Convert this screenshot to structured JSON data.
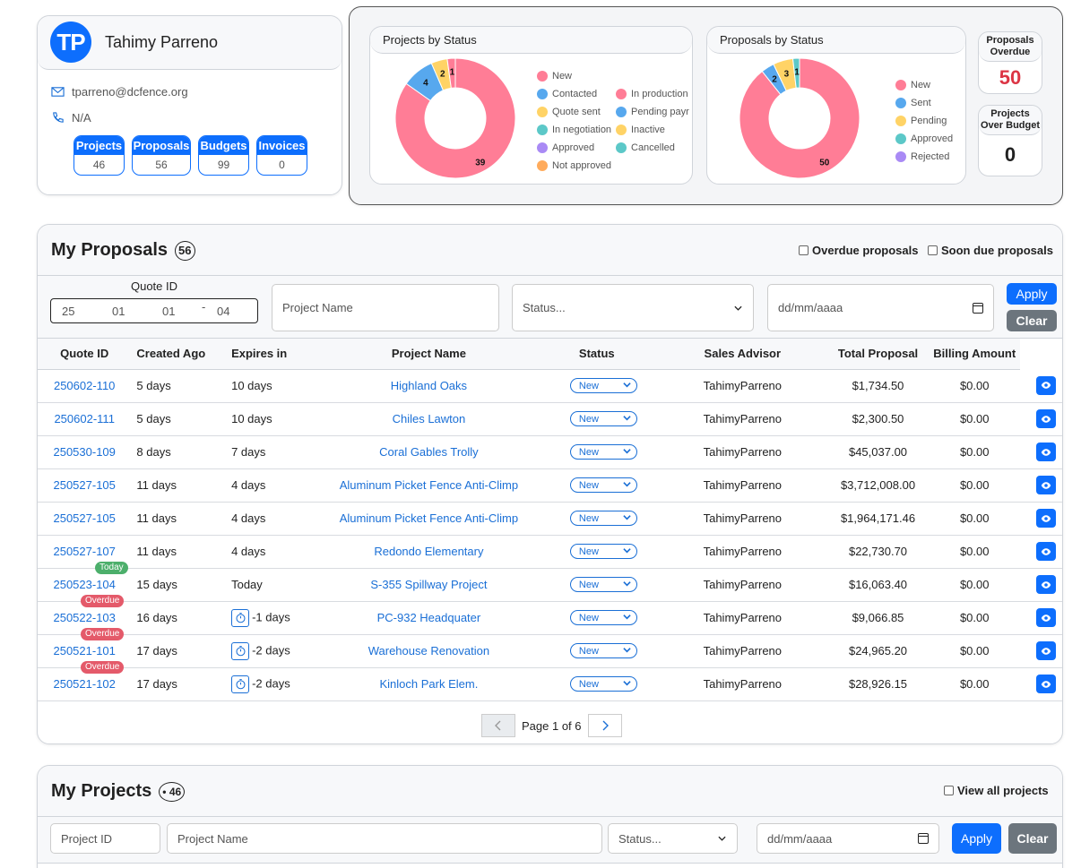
{
  "profile": {
    "initials": "TP",
    "name": "Tahimy Parreno",
    "email": "tparreno@dcfence.org",
    "phone": "N/A",
    "stats": [
      {
        "label": "Projects",
        "value": "46"
      },
      {
        "label": "Proposals",
        "value": "56"
      },
      {
        "label": "Budgets",
        "value": "99"
      },
      {
        "label": "Invoices",
        "value": "0"
      }
    ]
  },
  "colors": {
    "new": "#ff7d96",
    "contacted": "#57a8ee",
    "quote_sent": "#ffd366",
    "in_negotiation": "#5cc8c8",
    "approved": "#a98af5",
    "not_approved": "#ffab5c",
    "in_production": "#ff7d96",
    "pending": "#57a8ee",
    "inactive": "#ffd366",
    "cancelled": "#5cc8c8",
    "primary": "#0d6efd",
    "overdue_value": "#dc3545"
  },
  "chart_data": [
    {
      "type": "pie",
      "title": "Projects by Status",
      "categories": [
        "New",
        "Contacted",
        "Quote sent",
        "In negotiation",
        "Approved",
        "Not approved",
        "In production",
        "Pending payr",
        "Inactive",
        "Cancelled"
      ],
      "values": [
        39,
        4,
        2,
        0,
        0,
        0,
        1,
        0,
        0,
        0
      ],
      "labels_shown": [
        "39",
        "4",
        "2",
        "1"
      ],
      "donut": true
    },
    {
      "type": "pie",
      "title": "Proposals by Status",
      "categories": [
        "New",
        "Sent",
        "Pending",
        "Approved",
        "Rejected"
      ],
      "values": [
        50,
        2,
        3,
        1,
        0
      ],
      "labels_shown": [
        "50",
        "2",
        "3",
        "1"
      ],
      "donut": true
    }
  ],
  "kpis": {
    "overdue_title": "Proposals Overdue",
    "overdue_value": "50",
    "over_budget_title": "Projects Over Budget",
    "over_budget_value": "0"
  },
  "proposals": {
    "title": "My Proposals",
    "count": "56",
    "overdue_chk": "Overdue proposals",
    "soon_due_chk": "Soon due proposals",
    "quote_id_label": "Quote ID",
    "quote_id_parts": [
      "25",
      "01",
      "01",
      "04"
    ],
    "quote_id_sep": "-",
    "project_name_ph": "Project Name",
    "status_ph": "Status...",
    "date_ph": "dd/mm/aaaa",
    "apply": "Apply",
    "clear": "Clear",
    "columns": [
      "Quote ID",
      "Created Ago",
      "Expires in",
      "Project Name",
      "Status",
      "Sales Advisor",
      "Total Proposal",
      "Billing Amount"
    ],
    "rows": [
      {
        "qid": "250602-110",
        "created": "5 days",
        "expires": "10 days",
        "project": "Highland Oaks",
        "status": "New",
        "advisor": "TahimyParreno",
        "total": "$1,734.50",
        "billing": "$0.00",
        "tag": "",
        "timer": false
      },
      {
        "qid": "250602-111",
        "created": "5 days",
        "expires": "10 days",
        "project": "Chiles Lawton",
        "status": "New",
        "advisor": "TahimyParreno",
        "total": "$2,300.50",
        "billing": "$0.00",
        "tag": "",
        "timer": false
      },
      {
        "qid": "250530-109",
        "created": "8 days",
        "expires": "7 days",
        "project": "Coral Gables Trolly",
        "status": "New",
        "advisor": "TahimyParreno",
        "total": "$45,037.00",
        "billing": "$0.00",
        "tag": "",
        "timer": false
      },
      {
        "qid": "250527-105",
        "created": "11 days",
        "expires": "4 days",
        "project": "Aluminum Picket Fence Anti-Climp",
        "status": "New",
        "advisor": "TahimyParreno",
        "total": "$3,712,008.00",
        "billing": "$0.00",
        "tag": "",
        "timer": false
      },
      {
        "qid": "250527-105",
        "created": "11 days",
        "expires": "4 days",
        "project": "Aluminum Picket Fence Anti-Climp",
        "status": "New",
        "advisor": "TahimyParreno",
        "total": "$1,964,171.46",
        "billing": "$0.00",
        "tag": "",
        "timer": false
      },
      {
        "qid": "250527-107",
        "created": "11 days",
        "expires": "4 days",
        "project": "Redondo Elementary",
        "status": "New",
        "advisor": "TahimyParreno",
        "total": "$22,730.70",
        "billing": "$0.00",
        "tag": "",
        "timer": false
      },
      {
        "qid": "250523-104",
        "created": "15 days",
        "expires": "Today",
        "project": "S-355 Spillway Project",
        "status": "New",
        "advisor": "TahimyParreno",
        "total": "$16,063.40",
        "billing": "$0.00",
        "tag": "Today",
        "timer": false
      },
      {
        "qid": "250522-103",
        "created": "16 days",
        "expires": "-1 days",
        "project": "PC-932 Headquater",
        "status": "New",
        "advisor": "TahimyParreno",
        "total": "$9,066.85",
        "billing": "$0.00",
        "tag": "Overdue",
        "timer": true
      },
      {
        "qid": "250521-101",
        "created": "17 days",
        "expires": "-2 days",
        "project": "Warehouse Renovation",
        "status": "New",
        "advisor": "TahimyParreno",
        "total": "$24,965.20",
        "billing": "$0.00",
        "tag": "Overdue",
        "timer": true
      },
      {
        "qid": "250521-102",
        "created": "17 days",
        "expires": "-2 days",
        "project": "Kinloch Park Elem.",
        "status": "New",
        "advisor": "TahimyParreno",
        "total": "$28,926.15",
        "billing": "$0.00",
        "tag": "Overdue",
        "timer": true
      }
    ],
    "page_text": "Page 1 of 6"
  },
  "projects": {
    "title": "My Projects",
    "count": "46",
    "count_prefix": "•",
    "view_all_chk": "View all projects",
    "project_id_ph": "Project ID",
    "project_name_ph": "Project Name",
    "status_ph": "Status...",
    "date_ph": "dd/mm/aaaa",
    "apply": "Apply",
    "clear": "Clear"
  }
}
